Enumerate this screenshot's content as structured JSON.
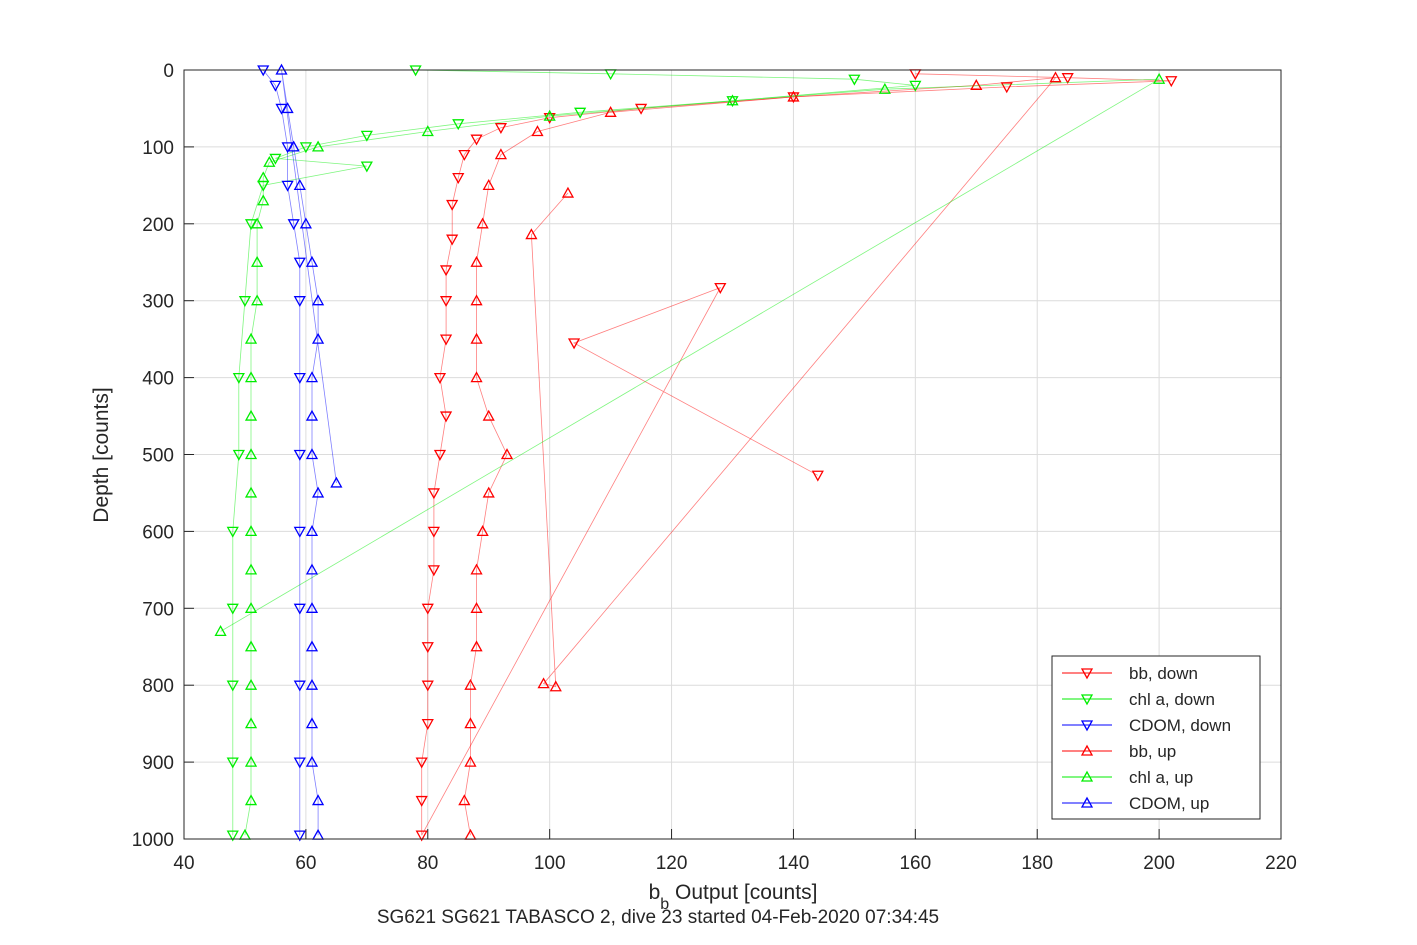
{
  "chart_data": {
    "type": "scatter",
    "title": "",
    "xlabel_main": "b",
    "xlabel_sub": "b",
    "xlabel_rest": " Output [counts]",
    "ylabel": "Depth [counts]",
    "caption": "SG621 SG621 TABASCO 2, dive 23 started 04-Feb-2020 07:34:45",
    "xlim": [
      40,
      220
    ],
    "ylim": [
      0,
      1000
    ],
    "y_reversed": true,
    "x_ticks": [
      "40",
      "60",
      "80",
      "100",
      "120",
      "140",
      "160",
      "180",
      "200",
      "220"
    ],
    "y_ticks": [
      "0",
      "100",
      "200",
      "300",
      "400",
      "500",
      "600",
      "700",
      "800",
      "900",
      "1000"
    ],
    "grid": true,
    "legend_position": "bottom-right",
    "series": [
      {
        "name": "bb, down",
        "color": "#ff0000",
        "marker": "triangle-down",
        "points": [
          [
            160,
            5
          ],
          [
            185,
            10
          ],
          [
            202,
            14
          ],
          [
            175,
            22
          ],
          [
            140,
            35
          ],
          [
            115,
            50
          ],
          [
            100,
            62
          ],
          [
            92,
            75
          ],
          [
            88,
            90
          ],
          [
            86,
            110
          ],
          [
            85,
            140
          ],
          [
            84,
            175
          ],
          [
            84,
            220
          ],
          [
            83,
            260
          ],
          [
            83,
            300
          ],
          [
            83,
            350
          ],
          [
            82,
            400
          ],
          [
            83,
            450
          ],
          [
            82,
            500
          ],
          [
            81,
            550
          ],
          [
            81,
            600
          ],
          [
            81,
            650
          ],
          [
            80,
            700
          ],
          [
            80,
            750
          ],
          [
            80,
            800
          ],
          [
            80,
            850
          ],
          [
            79,
            900
          ],
          [
            79,
            950
          ],
          [
            79,
            995
          ],
          [
            128,
            283
          ],
          [
            104,
            355
          ],
          [
            144,
            527
          ]
        ]
      },
      {
        "name": "chl a, down",
        "color": "#00ee00",
        "marker": "triangle-down",
        "points": [
          [
            78,
            0
          ],
          [
            110,
            5
          ],
          [
            150,
            12
          ],
          [
            160,
            20
          ],
          [
            130,
            40
          ],
          [
            105,
            55
          ],
          [
            85,
            70
          ],
          [
            70,
            85
          ],
          [
            60,
            100
          ],
          [
            55,
            115
          ],
          [
            70,
            125
          ],
          [
            53,
            150
          ],
          [
            51,
            200
          ],
          [
            50,
            300
          ],
          [
            49,
            400
          ],
          [
            49,
            500
          ],
          [
            48,
            600
          ],
          [
            48,
            700
          ],
          [
            48,
            800
          ],
          [
            48,
            900
          ],
          [
            48,
            995
          ]
        ]
      },
      {
        "name": "CDOM, down",
        "color": "#0000ff",
        "marker": "triangle-down",
        "points": [
          [
            53,
            0
          ],
          [
            55,
            20
          ],
          [
            56,
            50
          ],
          [
            57,
            100
          ],
          [
            57,
            150
          ],
          [
            58,
            200
          ],
          [
            59,
            250
          ],
          [
            59,
            300
          ],
          [
            59,
            400
          ],
          [
            59,
            500
          ],
          [
            59,
            600
          ],
          [
            59,
            700
          ],
          [
            59,
            800
          ],
          [
            59,
            900
          ],
          [
            59,
            995
          ]
        ]
      },
      {
        "name": "bb, up",
        "color": "#ff0000",
        "marker": "triangle-up",
        "points": [
          [
            87,
            995
          ],
          [
            86,
            950
          ],
          [
            87,
            900
          ],
          [
            87,
            850
          ],
          [
            87,
            800
          ],
          [
            88,
            750
          ],
          [
            88,
            700
          ],
          [
            88,
            650
          ],
          [
            89,
            600
          ],
          [
            90,
            550
          ],
          [
            93,
            500
          ],
          [
            90,
            450
          ],
          [
            88,
            400
          ],
          [
            88,
            350
          ],
          [
            88,
            300
          ],
          [
            88,
            250
          ],
          [
            89,
            200
          ],
          [
            90,
            150
          ],
          [
            92,
            110
          ],
          [
            98,
            80
          ],
          [
            110,
            55
          ],
          [
            140,
            35
          ],
          [
            170,
            20
          ],
          [
            183,
            10
          ],
          [
            99,
            798
          ],
          [
            101,
            802
          ],
          [
            97,
            214
          ],
          [
            103,
            160
          ]
        ]
      },
      {
        "name": "chl a, up",
        "color": "#00ee00",
        "marker": "triangle-up",
        "points": [
          [
            50,
            995
          ],
          [
            51,
            950
          ],
          [
            51,
            900
          ],
          [
            51,
            850
          ],
          [
            51,
            800
          ],
          [
            51,
            750
          ],
          [
            51,
            700
          ],
          [
            51,
            650
          ],
          [
            51,
            600
          ],
          [
            51,
            550
          ],
          [
            51,
            500
          ],
          [
            51,
            450
          ],
          [
            51,
            400
          ],
          [
            51,
            350
          ],
          [
            52,
            300
          ],
          [
            52,
            250
          ],
          [
            52,
            200
          ],
          [
            53,
            170
          ],
          [
            53,
            140
          ],
          [
            54,
            120
          ],
          [
            62,
            100
          ],
          [
            80,
            80
          ],
          [
            100,
            60
          ],
          [
            130,
            40
          ],
          [
            155,
            25
          ],
          [
            200,
            12
          ],
          [
            46,
            730
          ]
        ]
      },
      {
        "name": "CDOM, up",
        "color": "#0000ff",
        "marker": "triangle-up",
        "points": [
          [
            62,
            995
          ],
          [
            62,
            950
          ],
          [
            61,
            900
          ],
          [
            61,
            850
          ],
          [
            61,
            800
          ],
          [
            61,
            750
          ],
          [
            61,
            700
          ],
          [
            61,
            650
          ],
          [
            61,
            600
          ],
          [
            62,
            550
          ],
          [
            61,
            500
          ],
          [
            61,
            450
          ],
          [
            61,
            400
          ],
          [
            62,
            350
          ],
          [
            62,
            300
          ],
          [
            61,
            250
          ],
          [
            60,
            200
          ],
          [
            59,
            150
          ],
          [
            58,
            100
          ],
          [
            57,
            50
          ],
          [
            56,
            0
          ],
          [
            65,
            537
          ]
        ]
      }
    ]
  }
}
